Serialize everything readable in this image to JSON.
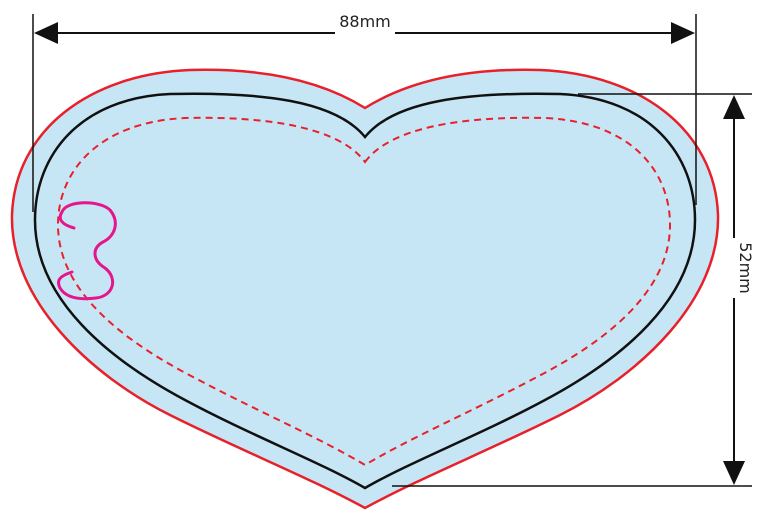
{
  "dimensions": {
    "width_label": "88mm",
    "height_label": "52mm"
  },
  "colors": {
    "background": "#ffffff",
    "fill": "#c7e6f5",
    "cut_line": "#e8202a",
    "trim_line": "#111111",
    "safe_line": "#e8202a",
    "hanger": "#e5168c",
    "dimension": "#111111"
  }
}
